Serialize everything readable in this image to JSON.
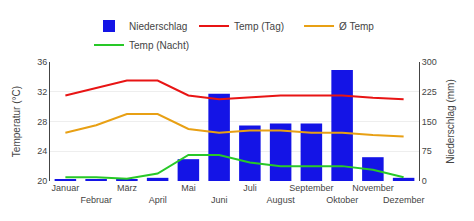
{
  "chart_data": {
    "type": "bar",
    "categories": [
      "Januar",
      "Februar",
      "März",
      "April",
      "Mai",
      "Juni",
      "Juli",
      "August",
      "September",
      "Oktober",
      "November",
      "Dezember"
    ],
    "series": [
      {
        "name": "Niederschlag",
        "type": "bar",
        "axis": "y2",
        "color": "#1414e6",
        "values": [
          5,
          5,
          3,
          8,
          55,
          220,
          140,
          145,
          145,
          280,
          60,
          8
        ]
      },
      {
        "name": "Temp (Tag)",
        "type": "line",
        "color": "#e81414",
        "values": [
          31.5,
          32.5,
          33.5,
          33.5,
          31.5,
          31.0,
          31.2,
          31.5,
          31.5,
          31.5,
          31.2,
          31.0
        ]
      },
      {
        "name": "Ø Temp",
        "type": "line",
        "color": "#e8a014",
        "values": [
          26.5,
          27.5,
          29.0,
          29.0,
          27.0,
          26.5,
          26.8,
          26.8,
          26.5,
          26.5,
          26.2,
          26.0
        ]
      },
      {
        "name": "Temp (Nacht)",
        "type": "line",
        "color": "#28c828",
        "values": [
          20.5,
          20.5,
          20.3,
          21.0,
          23.5,
          23.5,
          22.5,
          22.0,
          22.0,
          22.0,
          21.5,
          20.5
        ]
      }
    ],
    "ylabel": "Temperatur (°C)",
    "y2label": "Niederschlag (mm)",
    "ylim": [
      20,
      36
    ],
    "yticks": [
      20,
      24,
      28,
      32,
      36
    ],
    "y2lim": [
      0,
      300
    ],
    "y2ticks": [
      0,
      75,
      150,
      225,
      300
    ],
    "grid": true,
    "legend": "top"
  }
}
